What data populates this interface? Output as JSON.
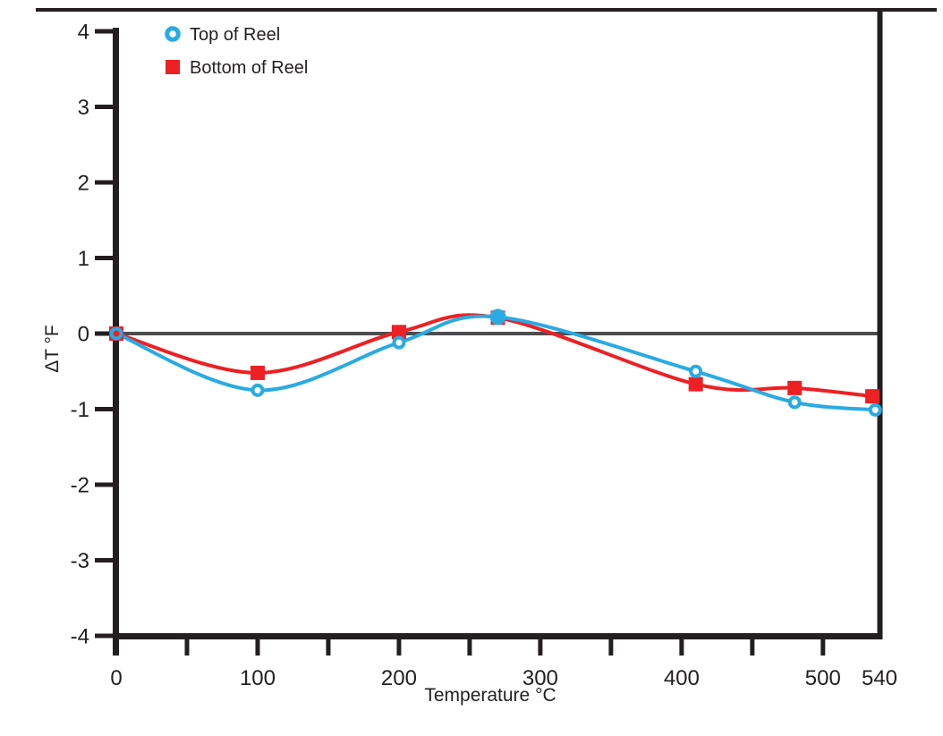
{
  "colors": {
    "axis": "#231F20",
    "text": "#231F20",
    "zero_line": "#4D4D4F",
    "top_series": "#29ABE2",
    "bottom_series": "#ED2024",
    "background": "#FFFFFF"
  },
  "legend": {
    "items": [
      {
        "label": "Top of Reel",
        "marker": "circle-open",
        "color": "#29ABE2"
      },
      {
        "label": "Bottom of Reel",
        "marker": "square",
        "color": "#ED2024"
      }
    ]
  },
  "chart_data": {
    "type": "line",
    "title": "",
    "xlabel": "Temperature °C",
    "ylabel": "ΔT °F",
    "xlim": [
      0,
      540
    ],
    "ylim": [
      -4,
      4
    ],
    "grid": false,
    "zero_line": true,
    "legend_position": "top-left",
    "x_axis": {
      "label": "Temperature °C",
      "labeled_ticks": [
        0,
        100,
        200,
        300,
        400,
        500,
        540
      ],
      "minor_ticks": [
        50,
        150,
        250,
        350,
        450
      ]
    },
    "y_axis": {
      "label": "ΔT °F",
      "ticks": [
        4,
        3,
        2,
        1,
        0,
        -1,
        -2,
        -3,
        -4
      ]
    },
    "series": [
      {
        "name": "Bottom of Reel",
        "color": "#ED2024",
        "marker": "square",
        "points": [
          [
            0,
            0
          ],
          [
            100,
            -0.52
          ],
          [
            200,
            0.02
          ],
          [
            270,
            0.21
          ],
          [
            410,
            -0.67
          ],
          [
            480,
            -0.72
          ],
          [
            535,
            -0.83
          ]
        ]
      },
      {
        "name": "Top of Reel",
        "color": "#29ABE2",
        "marker": "circle-open",
        "filled_point_index": 3,
        "points": [
          [
            0,
            0
          ],
          [
            100,
            -0.75
          ],
          [
            200,
            -0.12
          ],
          [
            270,
            0.22
          ],
          [
            410,
            -0.5
          ],
          [
            480,
            -0.91
          ],
          [
            537,
            -1.01
          ]
        ]
      }
    ]
  }
}
